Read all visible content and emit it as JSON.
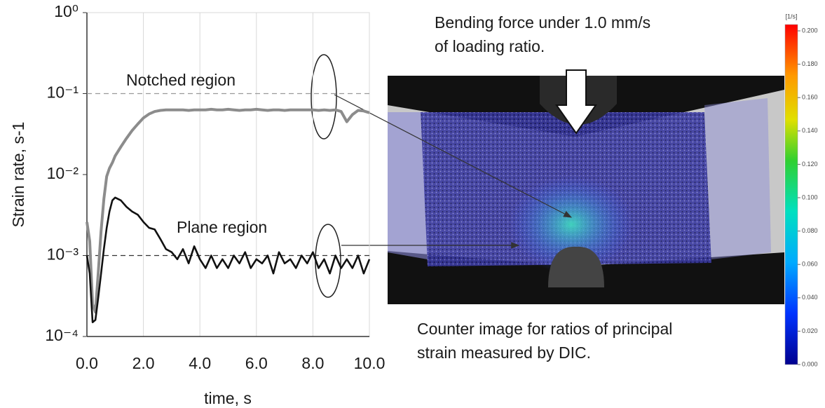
{
  "chart_data": {
    "type": "line",
    "x_label": "time, s",
    "y_label": "Strain rate, s-1",
    "log_y": true,
    "grid": true,
    "xlim": [
      0,
      10
    ],
    "ylim": [
      0.0001,
      1
    ],
    "xticks": [
      {
        "value": 0,
        "label": "0.0"
      },
      {
        "value": 2,
        "label": "2.0"
      },
      {
        "value": 4,
        "label": "4.0"
      },
      {
        "value": 6,
        "label": "6.0"
      },
      {
        "value": 8,
        "label": "8.0"
      },
      {
        "value": 10,
        "label": "10.0"
      }
    ],
    "yticks": [
      {
        "value": 1,
        "label": "10⁰"
      },
      {
        "value": 0.1,
        "label": "10⁻¹"
      },
      {
        "value": 0.01,
        "label": "10⁻²"
      },
      {
        "value": 0.001,
        "label": "10⁻³"
      },
      {
        "value": 0.0001,
        "label": "10⁻⁴"
      }
    ],
    "reference_lines": [
      {
        "value": 0.1,
        "color": "#999999"
      },
      {
        "value": 0.001,
        "color": "#333333"
      }
    ],
    "x": [
      0,
      0.1,
      0.2,
      0.3,
      0.4,
      0.5,
      0.6,
      0.7,
      0.8,
      0.9,
      1.0,
      1.2,
      1.4,
      1.6,
      1.8,
      2.0,
      2.2,
      2.4,
      2.6,
      2.8,
      3.0,
      3.2,
      3.4,
      3.6,
      3.8,
      4.0,
      4.2,
      4.4,
      4.6,
      4.8,
      5.0,
      5.2,
      5.4,
      5.6,
      5.8,
      6.0,
      6.2,
      6.4,
      6.6,
      6.8,
      7.0,
      7.2,
      7.4,
      7.6,
      7.8,
      8.0,
      8.2,
      8.4,
      8.6,
      8.8,
      9.0,
      9.2,
      9.4,
      9.6,
      9.8,
      10.0
    ],
    "series": [
      {
        "name": "Notched region",
        "color": "#8c8c8c",
        "values": [
          0.0026,
          0.0015,
          0.00025,
          0.0002,
          0.0006,
          0.002,
          0.005,
          0.0095,
          0.012,
          0.014,
          0.017,
          0.022,
          0.028,
          0.035,
          0.042,
          0.05,
          0.056,
          0.06,
          0.062,
          0.063,
          0.063,
          0.063,
          0.063,
          0.062,
          0.063,
          0.063,
          0.063,
          0.064,
          0.063,
          0.063,
          0.064,
          0.063,
          0.062,
          0.063,
          0.063,
          0.064,
          0.063,
          0.062,
          0.063,
          0.063,
          0.062,
          0.063,
          0.063,
          0.063,
          0.063,
          0.063,
          0.062,
          0.063,
          0.062,
          0.063,
          0.06,
          0.045,
          0.055,
          0.062,
          0.061,
          0.058
        ]
      },
      {
        "name": "Plane region",
        "color": "#111111",
        "values": [
          0.001,
          0.0006,
          0.00015,
          0.00016,
          0.0003,
          0.0006,
          0.0012,
          0.0022,
          0.0035,
          0.0048,
          0.0052,
          0.0048,
          0.004,
          0.0035,
          0.0032,
          0.0026,
          0.0022,
          0.0021,
          0.0016,
          0.0012,
          0.0011,
          0.0009,
          0.0012,
          0.0008,
          0.0013,
          0.0009,
          0.0007,
          0.001,
          0.0007,
          0.0009,
          0.0007,
          0.001,
          0.0008,
          0.0011,
          0.0007,
          0.0009,
          0.0008,
          0.001,
          0.0006,
          0.0011,
          0.0008,
          0.0009,
          0.0007,
          0.001,
          0.0008,
          0.0011,
          0.0007,
          0.0009,
          0.0006,
          0.001,
          0.0007,
          0.0009,
          0.0007,
          0.001,
          0.0006,
          0.0009
        ]
      }
    ],
    "image_caption_top": [
      "Bending force under 1.0 mm/s",
      "of loading ratio."
    ],
    "image_caption_bottom": [
      "Counter image for ratios of principal",
      "strain measured by DIC."
    ],
    "colorbar": {
      "label": "[1/s]",
      "lim": [
        0,
        0.2
      ],
      "ticks": [
        {
          "value": 0,
          "label": "0.000"
        },
        {
          "value": 0.02,
          "label": "0.020"
        },
        {
          "value": 0.04,
          "label": "0.040"
        },
        {
          "value": 0.06,
          "label": "0.060"
        },
        {
          "value": 0.08,
          "label": "0.080"
        },
        {
          "value": 0.1,
          "label": "0.100"
        },
        {
          "value": 0.12,
          "label": "0.120"
        },
        {
          "value": 0.14,
          "label": "0.140"
        },
        {
          "value": 0.16,
          "label": "0.160"
        },
        {
          "value": 0.18,
          "label": "0.180"
        },
        {
          "value": 0.2,
          "label": "0.200"
        }
      ]
    }
  }
}
